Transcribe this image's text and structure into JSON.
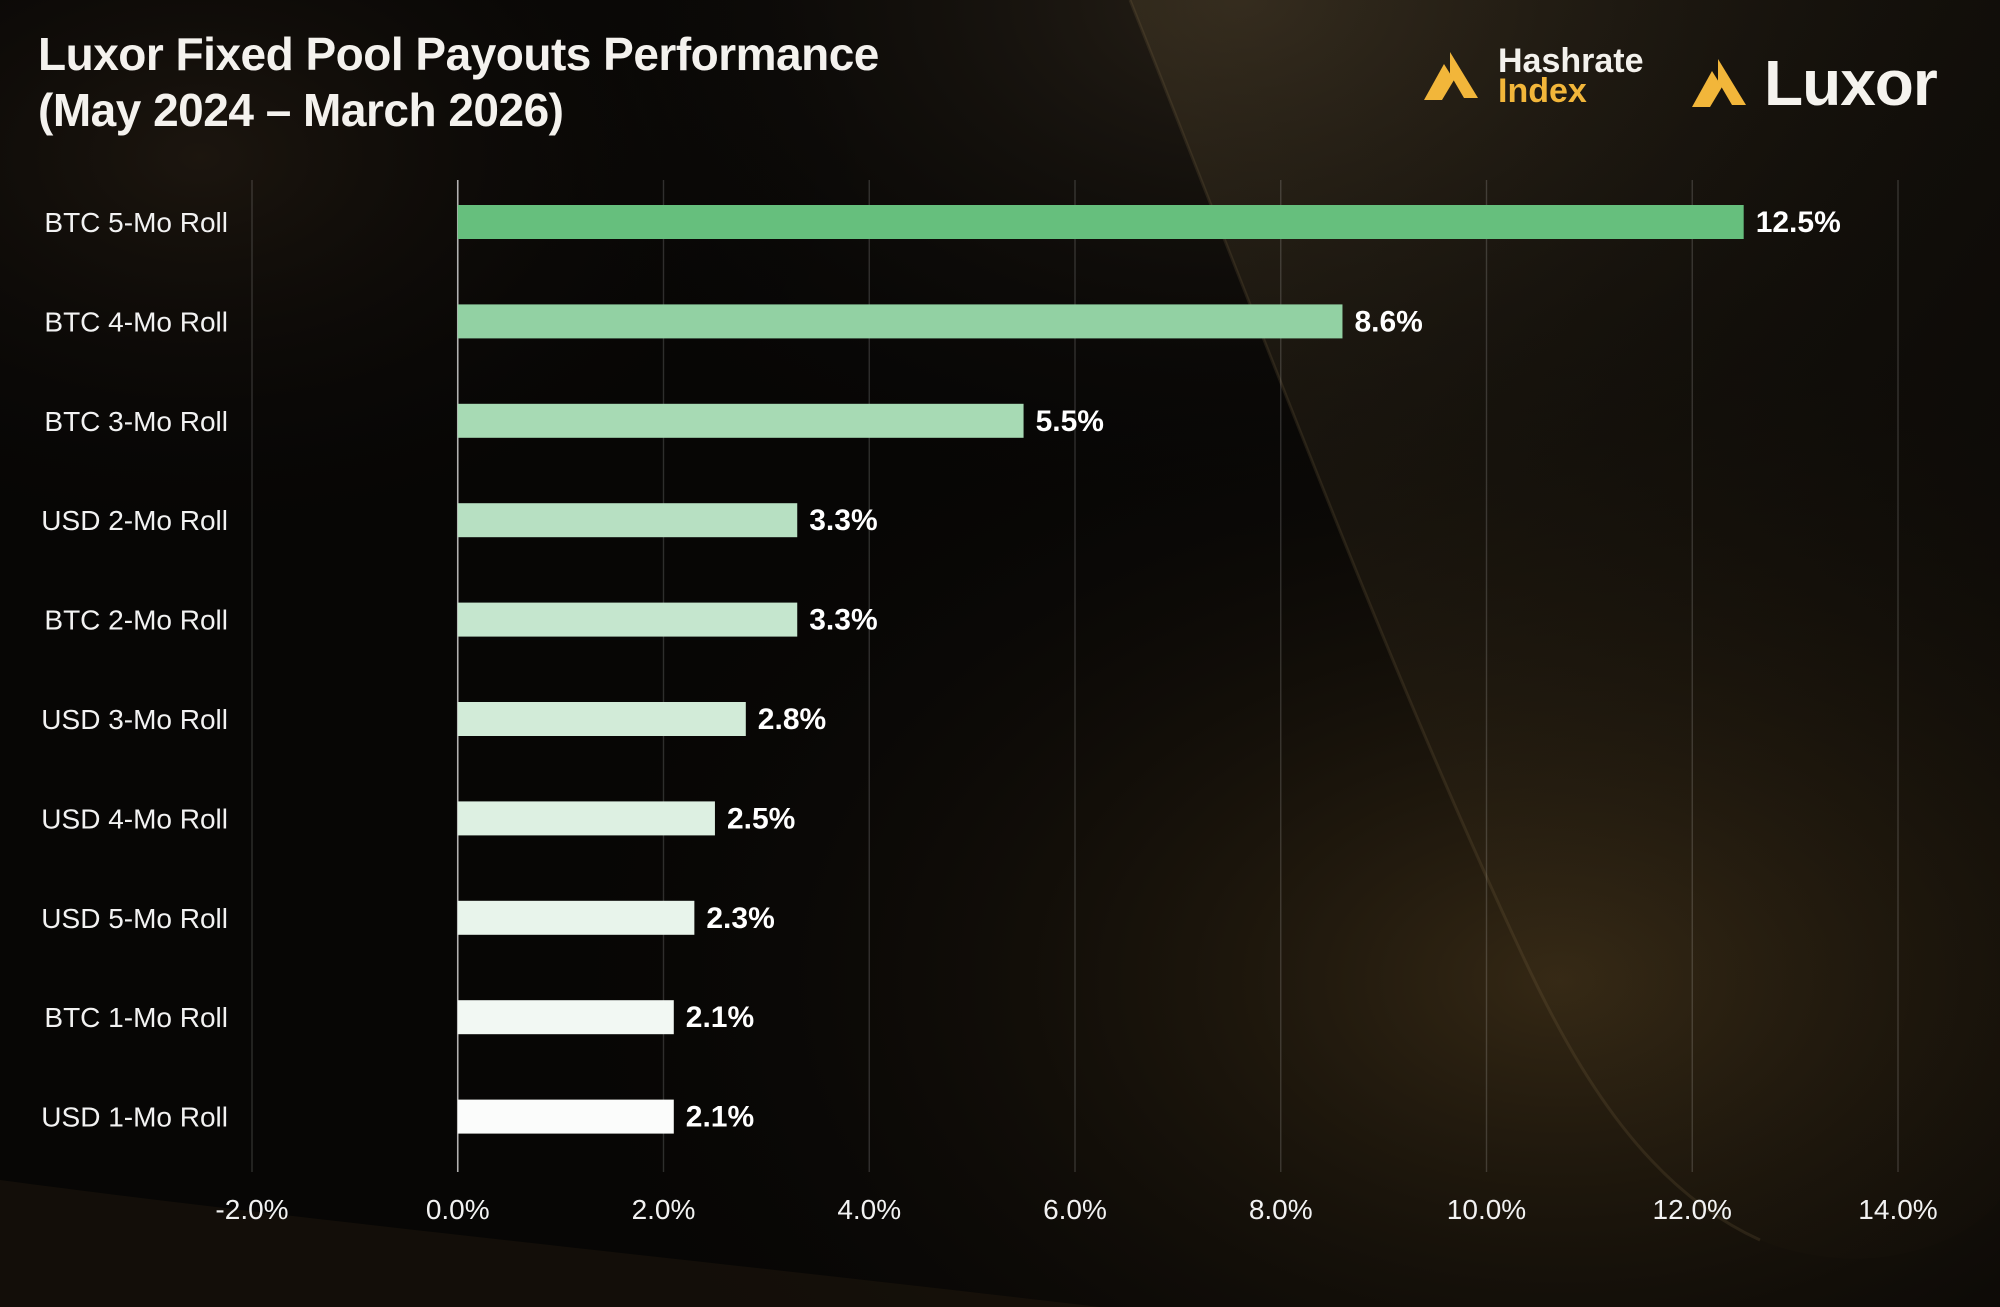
{
  "header": {
    "title_line1": "Luxor Fixed Pool Payouts Performance",
    "title_line2": "(May 2024 – March 2026)"
  },
  "logos": {
    "hashrate_index_line1": "Hashrate",
    "hashrate_index_line2": "Index",
    "luxor": "Luxor",
    "icon": "luxor-triangle-icon"
  },
  "colors": {
    "bar_top": "#66bf7d",
    "bar_bottom": "#fbfcfb",
    "accent_gold": "#f2b63a"
  },
  "chart_data": {
    "type": "bar",
    "orientation": "horizontal",
    "categories": [
      "BTC 5-Mo Roll",
      "BTC 4-Mo Roll",
      "BTC 3-Mo Roll",
      "USD 2-Mo Roll",
      "BTC 2-Mo Roll",
      "USD 3-Mo Roll",
      "USD 4-Mo Roll",
      "USD 5-Mo Roll",
      "BTC 1-Mo Roll",
      "USD 1-Mo Roll"
    ],
    "values": [
      12.5,
      8.6,
      5.5,
      3.3,
      3.3,
      2.8,
      2.5,
      2.3,
      2.1,
      2.1
    ],
    "data_labels": [
      "12.5%",
      "8.6%",
      "5.5%",
      "3.3%",
      "3.3%",
      "2.8%",
      "2.5%",
      "2.3%",
      "2.1%",
      "2.1%"
    ],
    "title": "Luxor Fixed Pool Payouts Performance (May 2024 – March 2026)",
    "xlabel": "",
    "ylabel": "",
    "xlim": [
      -2.0,
      14.0
    ],
    "x_ticks": [
      -2.0,
      0.0,
      2.0,
      4.0,
      6.0,
      8.0,
      10.0,
      12.0,
      14.0
    ],
    "x_tick_labels": [
      "-2.0%",
      "0.0%",
      "2.0%",
      "4.0%",
      "6.0%",
      "8.0%",
      "10.0%",
      "12.0%",
      "14.0%"
    ],
    "grid": "vertical",
    "legend": "none"
  }
}
